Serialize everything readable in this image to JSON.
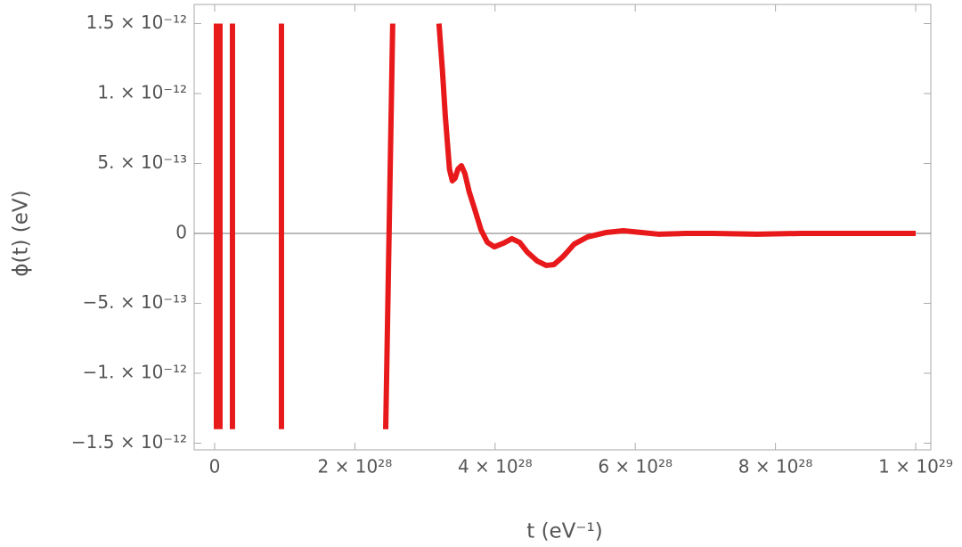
{
  "chart_data": {
    "type": "line",
    "xlabel": "t (eV⁻¹)",
    "ylabel": "ϕ(t) (eV)",
    "xlim": [
      -2.92e+27,
      1.0216e+29
    ],
    "ylim": [
      -1.548e-12,
      1.637e-12
    ],
    "xticks": [
      0,
      {
        "value": 2e+28,
        "label": "2 × 10²⁸"
      },
      {
        "value": 4e+28,
        "label": "4 × 10²⁸"
      },
      {
        "value": 6e+28,
        "label": "6 × 10²⁸"
      },
      {
        "value": 8e+28,
        "label": "8 × 10²⁸"
      },
      {
        "value": 1e+29,
        "label": "1 × 10²⁹"
      }
    ],
    "yticks": [
      {
        "value": -1.5e-12,
        "label": "−1.5 × 10⁻¹²"
      },
      {
        "value": -1e-12,
        "label": "−1. × 10⁻¹²"
      },
      {
        "value": -5e-13,
        "label": "−5. × 10⁻¹³"
      },
      0,
      {
        "value": 5e-13,
        "label": "5. × 10⁻¹³"
      },
      {
        "value": 1e-12,
        "label": "1. × 10⁻¹²"
      },
      {
        "value": 1.5e-12,
        "label": "1.5 × 10⁻¹²"
      }
    ],
    "x": [
      2.5e+26,
      2.5e+26,
      null,
      7.6e+26,
      7.6e+26,
      null,
      2.54e+27,
      2.54e+27,
      null,
      9.53e+27,
      9.53e+27,
      null,
      2.44e+28,
      2.54e+28,
      null,
      3.2e+28,
      3.25e+28,
      3.29e+28,
      3.33e+28,
      3.35e+28,
      3.39e+28,
      3.43e+28,
      3.47e+28,
      3.52e+28,
      3.57e+28,
      3.63e+28,
      3.71e+28,
      3.8e+28,
      3.89e+28,
      3.99e+28,
      4.12e+28,
      4.24e+28,
      4.35e+28,
      4.46e+28,
      4.6e+28,
      4.73e+28,
      4.84e+28,
      4.97e+28,
      5.13e+28,
      5.32e+28,
      5.58e+28,
      5.83e+28,
      6.09e+28,
      6.34e+28,
      6.72e+28,
      7.1e+28,
      7.74e+28,
      8.37e+28,
      9.01e+28,
      9.64e+28,
      1e+29
    ],
    "series": [
      {
        "color": "#e8191b",
        "values": [
          -1.4e-12,
          1.5e-12,
          null,
          1.5e-12,
          -1.4e-12,
          null,
          -1.4e-12,
          1.5e-12,
          null,
          1.5e-12,
          -1.4e-12,
          null,
          -1.4e-12,
          1.5e-12,
          null,
          1.5e-12,
          1.16e-12,
          8.4e-13,
          5.86e-13,
          4.59e-13,
          3.76e-13,
          3.95e-13,
          4.59e-13,
          4.84e-13,
          4.27e-13,
          2.99e-13,
          1.72e-13,
          2.5e-14,
          -6.4e-14,
          -9.6e-14,
          -7e-14,
          -3.8e-14,
          -6.4e-14,
          -1.34e-13,
          -1.97e-13,
          -2.29e-13,
          -2.23e-13,
          -1.66e-13,
          -7.6e-14,
          -2.5e-14,
          6e-15,
          1.9e-14,
          6e-15,
          -6e-15,
          0,
          0,
          -6e-15,
          0,
          0,
          0,
          0
        ]
      }
    ]
  }
}
